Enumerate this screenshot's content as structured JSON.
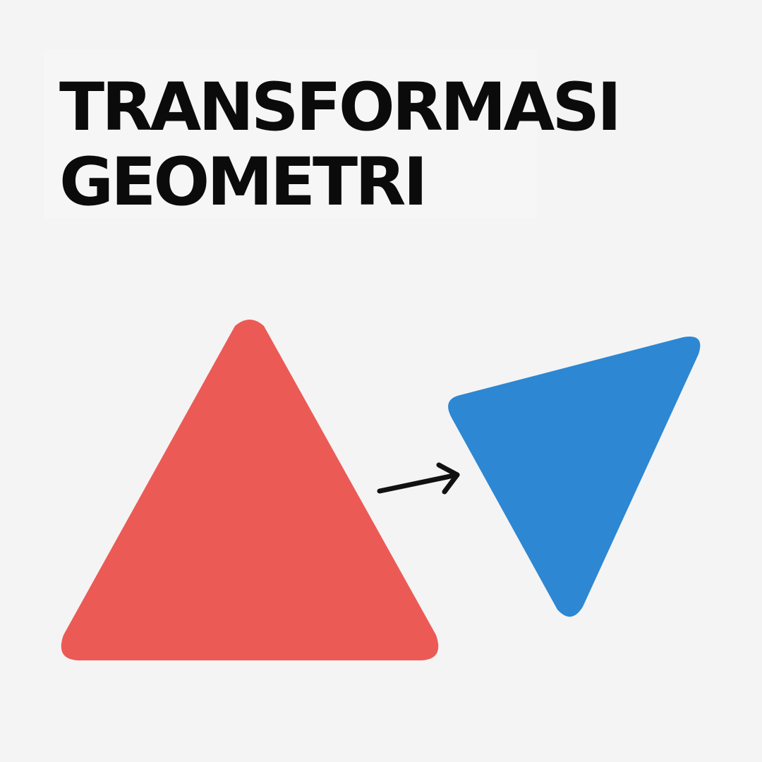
{
  "title": {
    "line1": "TRANSFORMASI",
    "line2": "GEOMETRI"
  },
  "figure": {
    "original_shape": {
      "shape": "triangle",
      "color": "#ec5a56"
    },
    "transformed_shape": {
      "shape": "triangle",
      "color": "#2d87d2"
    },
    "arrow": {
      "icon": "right-arrow-icon",
      "color": "#111111"
    }
  }
}
